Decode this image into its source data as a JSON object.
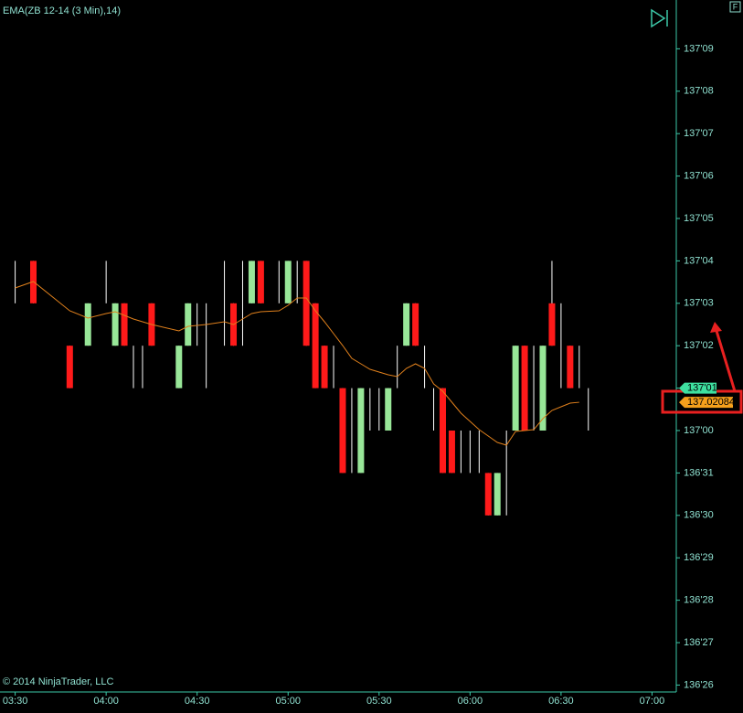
{
  "chart_data": {
    "type": "candlestick",
    "title": "EMA(ZB 12-14 (3 Min),14)",
    "copyright": "© 2014 NinjaTrader, LLC",
    "panel_button": "F",
    "x": [
      "03:30",
      "03:36",
      "03:48",
      "03:54",
      "04:00",
      "04:03",
      "04:06",
      "04:09",
      "04:12",
      "04:15",
      "04:24",
      "04:27",
      "04:30",
      "04:33",
      "04:39",
      "04:42",
      "04:45",
      "04:48",
      "04:51",
      "04:57",
      "05:00",
      "05:03",
      "05:06",
      "05:09",
      "05:12",
      "05:15",
      "05:18",
      "05:21",
      "05:24",
      "05:27",
      "05:30",
      "05:33",
      "05:36",
      "05:39",
      "05:42",
      "05:45",
      "05:48",
      "05:51",
      "05:54",
      "05:57",
      "06:00",
      "06:03",
      "06:06",
      "06:09",
      "06:12",
      "06:15",
      "06:18",
      "06:21",
      "06:24",
      "06:27",
      "06:30",
      "06:33",
      "06:36",
      "06:39"
    ],
    "open": [
      137.125,
      137.125,
      137.0625,
      137.0625,
      137.125,
      137.0625,
      137.09375,
      137.0625,
      137.0625,
      137.09375,
      137.03125,
      137.0625,
      137.09375,
      137.09375,
      137.125,
      137.09375,
      137.125,
      137.09375,
      137.125,
      137.125,
      137.09375,
      137.125,
      137.125,
      137.09375,
      137.0625,
      137.0625,
      137.03125,
      137.03125,
      136.96875,
      137.03125,
      137.03125,
      137,
      137.0625,
      137.0625,
      137.09375,
      137.0625,
      137.03125,
      137.03125,
      137,
      137,
      137,
      137,
      136.96875,
      136.9375,
      137,
      137,
      137.0625,
      137.0625,
      137,
      137.09375,
      137.09375,
      137.0625,
      137.0625,
      137.03125
    ],
    "high": [
      137.125,
      137.125,
      137.0625,
      137.09375,
      137.125,
      137.09375,
      137.09375,
      137.0625,
      137.0625,
      137.09375,
      137.0625,
      137.09375,
      137.09375,
      137.09375,
      137.125,
      137.09375,
      137.125,
      137.125,
      137.125,
      137.125,
      137.125,
      137.125,
      137.125,
      137.09375,
      137.0625,
      137.0625,
      137.03125,
      137.03125,
      137.03125,
      137.03125,
      137.03125,
      137.03125,
      137.0625,
      137.09375,
      137.09375,
      137.0625,
      137.03125,
      137.03125,
      137,
      137,
      137,
      137,
      136.96875,
      136.96875,
      137,
      137.0625,
      137.0625,
      137.0625,
      137.0625,
      137.125,
      137.09375,
      137.0625,
      137.0625,
      137.03125
    ],
    "low": [
      137.09375,
      137.09375,
      137.03125,
      137.0625,
      137.09375,
      137.0625,
      137.0625,
      137.03125,
      137.03125,
      137.0625,
      137.03125,
      137.0625,
      137.0625,
      137.03125,
      137.0625,
      137.0625,
      137.0625,
      137.09375,
      137.09375,
      137.09375,
      137.09375,
      137.09375,
      137.0625,
      137.03125,
      137.03125,
      137.03125,
      136.96875,
      136.96875,
      136.96875,
      137,
      137,
      137,
      137.03125,
      137.0625,
      137.0625,
      137.03125,
      137,
      136.96875,
      136.96875,
      136.96875,
      136.96875,
      136.96875,
      136.9375,
      136.9375,
      136.9375,
      137,
      137,
      137,
      137,
      137.0625,
      137.03125,
      137.03125,
      137.03125,
      137
    ],
    "close": [
      137.125,
      137.09375,
      137.03125,
      137.09375,
      137.125,
      137.09375,
      137.0625,
      137.0625,
      137.0625,
      137.0625,
      137.0625,
      137.09375,
      137.09375,
      137.09375,
      137.125,
      137.0625,
      137.125,
      137.125,
      137.09375,
      137.125,
      137.125,
      137.125,
      137.0625,
      137.03125,
      137.03125,
      137.0625,
      136.96875,
      137.03125,
      137.03125,
      137.03125,
      137.03125,
      137.03125,
      137.0625,
      137.09375,
      137.0625,
      137.0625,
      137.03125,
      136.96875,
      136.96875,
      137,
      137,
      137,
      136.9375,
      136.96875,
      137,
      137.0625,
      137,
      137.0625,
      137.0625,
      137.0625,
      137.09375,
      137.03125,
      137.0625,
      137.03125
    ],
    "colors": {
      "up": "#98e698",
      "down": "#ff1a1a",
      "flat": "#ffffff"
    },
    "ema": {
      "color": "#e0801c",
      "values": [
        137.10506,
        137.10978,
        137.08823,
        137.08284,
        137.08621,
        137.08755,
        137.08486,
        137.08217,
        137.08015,
        137.07812,
        137.07341,
        137.07678,
        137.07745,
        137.07812,
        137.08015,
        137.07812,
        137.08217,
        137.08621,
        137.08755,
        137.08823,
        137.09227,
        137.09766,
        137.09766,
        137.08823,
        137.08015,
        137.07139,
        137.06263,
        137.05321,
        137.04917,
        137.04512,
        137.0431,
        137.04108,
        137.03974,
        137.0458,
        137.04917,
        137.0458,
        137.03435,
        137.02896,
        137.02088,
        137.0128,
        137.00673,
        137.00067,
        136.99596,
        136.99124,
        136.98922,
        136.99933,
        137,
        137.00067,
        137.00876,
        137.01482,
        137.01751,
        137.0202,
        137.02084,
        null
      ]
    },
    "xlim": [
      "03:25",
      "07:08"
    ],
    "xticks": [
      "03:30",
      "04:00",
      "04:30",
      "05:00",
      "05:30",
      "06:00",
      "06:30",
      "07:00"
    ],
    "ylim": [
      136.8074,
      137.3172
    ],
    "yticks": [
      {
        "value": 137.28125,
        "label": "137'09"
      },
      {
        "value": 137.25,
        "label": "137'08"
      },
      {
        "value": 137.21875,
        "label": "137'07"
      },
      {
        "value": 137.1875,
        "label": "137'06"
      },
      {
        "value": 137.15625,
        "label": "137'05"
      },
      {
        "value": 137.125,
        "label": "137'04"
      },
      {
        "value": 137.09375,
        "label": "137'03"
      },
      {
        "value": 137.0625,
        "label": "137'02"
      },
      {
        "value": 137.03125,
        "label": "137'01"
      },
      {
        "value": 137,
        "label": "137'00"
      },
      {
        "value": 136.96875,
        "label": "136'31"
      },
      {
        "value": 136.9375,
        "label": "136'30"
      },
      {
        "value": 136.90625,
        "label": "136'29"
      },
      {
        "value": 136.875,
        "label": "136'28"
      },
      {
        "value": 136.84375,
        "label": "136'27"
      },
      {
        "value": 136.8125,
        "label": "136'26"
      }
    ],
    "price_marker": {
      "value": 137.03125,
      "label": "137'01",
      "color": "#3ee0a0"
    },
    "ema_marker": {
      "value": 137.02084,
      "label": "137.02084",
      "color": "#f5a01c"
    }
  }
}
